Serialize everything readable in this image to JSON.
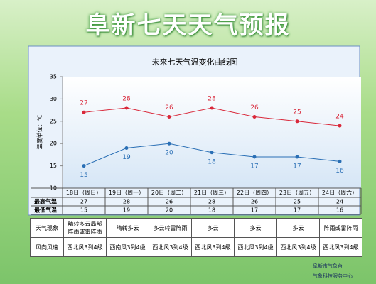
{
  "header": {
    "title": "阜新七天天气预报"
  },
  "chart_data": {
    "type": "line",
    "title": "未来七天气温变化曲线图",
    "y_label": "温度单位：℃",
    "categories": [
      "18日（周日）",
      "19日（周一）",
      "20日（周二）",
      "21日（周三）",
      "22日（周四）",
      "23日（周五）",
      "24日（周六）"
    ],
    "series": [
      {
        "name": "最高气温",
        "color": "#d9283a",
        "values": [
          27,
          28,
          26,
          28,
          26,
          25,
          24
        ]
      },
      {
        "name": "最低气温",
        "color": "#2a6fb5",
        "values": [
          15,
          19,
          20,
          18,
          17,
          17,
          16
        ]
      }
    ],
    "ylim": [
      10,
      35
    ],
    "yticks": [
      10,
      15,
      20,
      25,
      30,
      35
    ],
    "grid": false
  },
  "weather_table": {
    "rows": [
      {
        "label": "天气现象",
        "cells": [
          "晴转多云局部阵雨或雷阵雨",
          "晴转多云",
          "多云转雷阵雨",
          "多云",
          "多云",
          "多云",
          "阵雨或雷阵雨"
        ]
      },
      {
        "label": "风向风速",
        "cells": [
          "西北风3到4级",
          "西南风3到4级",
          "西北风3到4级",
          "西北风3到4级",
          "西北风3到4级",
          "西北风3到4级",
          "西北风3到4级"
        ]
      }
    ]
  },
  "footer": {
    "line1": "阜新市气象台",
    "line2": "气象科技服务中心"
  }
}
